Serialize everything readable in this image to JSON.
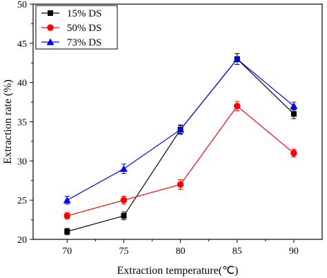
{
  "chart_data": {
    "type": "line",
    "xlabel": "Extraction temperature(℃)",
    "ylabel": "Extraction rate (%)",
    "x": [
      70,
      75,
      80,
      85,
      90
    ],
    "xlim": [
      67,
      92.5
    ],
    "ylim": [
      20,
      50
    ],
    "xticks": [
      "70",
      "75",
      "80",
      "85",
      "90"
    ],
    "yticks": [
      "20",
      "25",
      "30",
      "35",
      "40",
      "45",
      "50"
    ],
    "legend_position": "top-left",
    "grid": false,
    "series": [
      {
        "name": "15% DS",
        "color": "#000000",
        "marker": "square",
        "values": [
          21,
          23,
          34,
          43,
          36
        ],
        "error": [
          0.4,
          0.5,
          0.5,
          0.7,
          0.6
        ]
      },
      {
        "name": "50% DS",
        "color": "#ff0000",
        "marker": "circle",
        "values": [
          23,
          25,
          27,
          37,
          31
        ],
        "error": [
          0.4,
          0.5,
          0.6,
          0.6,
          0.5
        ]
      },
      {
        "name": "73% DS",
        "color": "#0000ff",
        "marker": "triangle",
        "values": [
          25,
          29,
          34,
          43,
          37
        ],
        "error": [
          0.5,
          0.6,
          0.6,
          0.7,
          0.5
        ]
      }
    ]
  }
}
